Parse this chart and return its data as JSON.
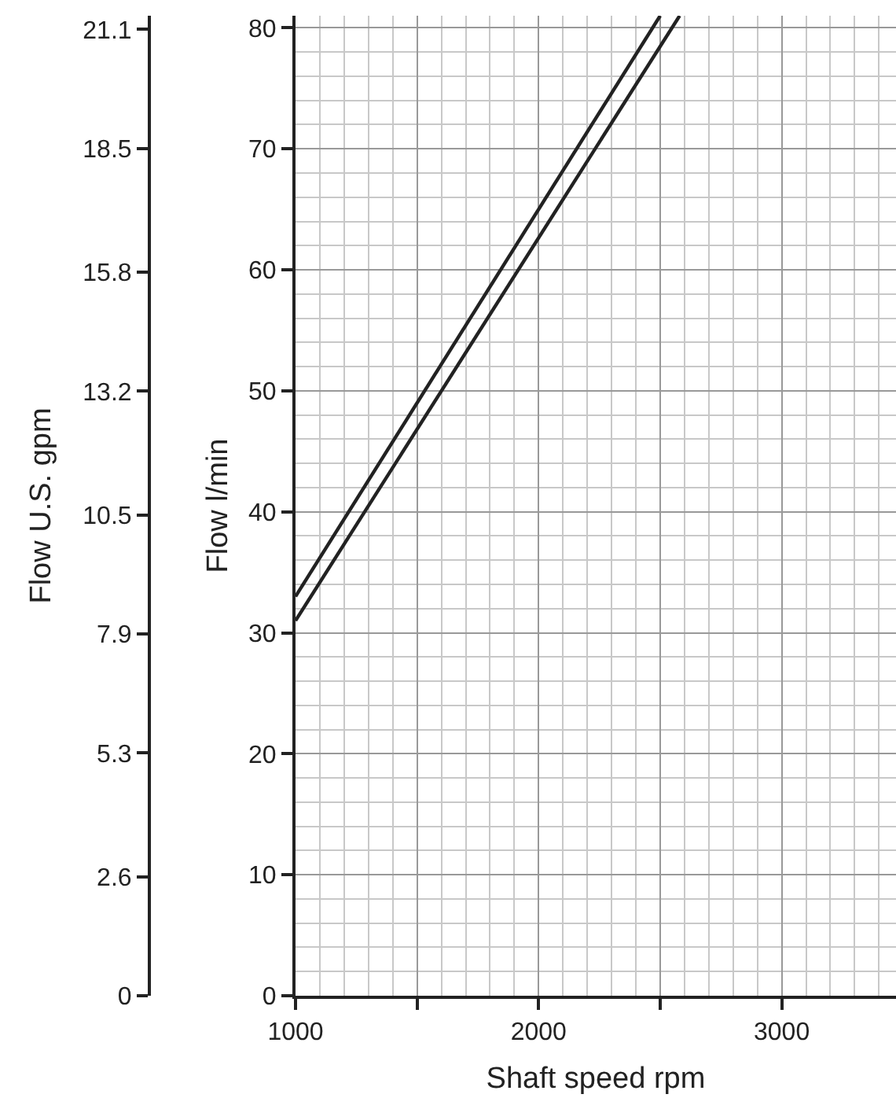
{
  "chart_data": {
    "type": "line",
    "xlabel": "Shaft speed rpm",
    "ylabel": "Flow l/min",
    "y2label": "Flow U.S. gpm",
    "series": [
      {
        "color": "#222222",
        "x": [
          1000,
          2500
        ],
        "values": [
          33,
          81
        ]
      },
      {
        "color": "#222222",
        "x": [
          1000,
          2580
        ],
        "values": [
          31,
          81
        ]
      }
    ],
    "xlim": [
      1000,
      3470
    ],
    "xticks": [
      1000,
      {
        "value": 1500,
        "label": null
      },
      2000,
      {
        "value": 2500,
        "label": null
      },
      3000
    ],
    "ylim": [
      0,
      81
    ],
    "yticks": [
      0,
      10,
      20,
      30,
      40,
      50,
      60,
      70,
      80
    ],
    "y2lim": [
      0,
      21.4
    ],
    "y2ticks": [
      0,
      2.6,
      5.3,
      7.9,
      10.5,
      13.2,
      15.8,
      18.5,
      21.1
    ],
    "grid": true,
    "marker": "none",
    "line_style": "solid"
  }
}
